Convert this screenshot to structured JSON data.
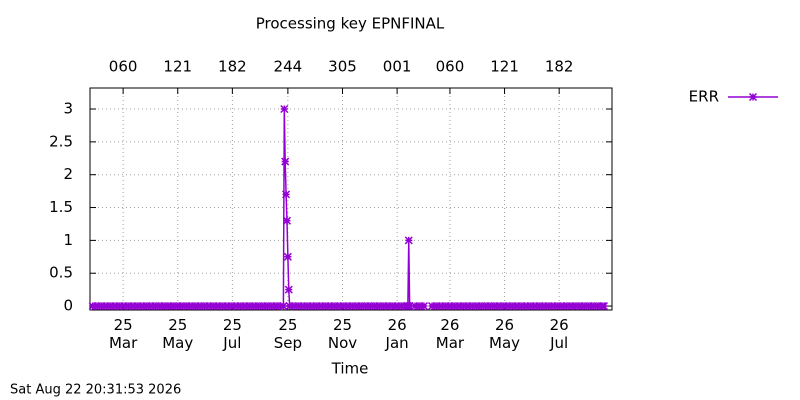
{
  "chart_data": {
    "type": "line",
    "title": "Processing key EPNFINAL",
    "xlabel": "Time",
    "timestamp": "Sat Aug 22 20:31:53 2026",
    "x": [
      25,
      30,
      35,
      40,
      45,
      50,
      55,
      60,
      65,
      70,
      75,
      80,
      85,
      90,
      95,
      100,
      105,
      110,
      115,
      120,
      125,
      130,
      135,
      140,
      145,
      150,
      155,
      160,
      165,
      170,
      175,
      180,
      185,
      190,
      195,
      200,
      205,
      210,
      215,
      220,
      225,
      230,
      235,
      238,
      239,
      240,
      241,
      242,
      243,
      244,
      245,
      250,
      255,
      260,
      265,
      270,
      275,
      280,
      285,
      290,
      295,
      300,
      305,
      310,
      315,
      320,
      325,
      330,
      335,
      340,
      345,
      350,
      355,
      360,
      365,
      370,
      375,
      377,
      378,
      379,
      385,
      390,
      395,
      400,
      404,
      409,
      414,
      419,
      424,
      429,
      434,
      439,
      444,
      449,
      454,
      459,
      464,
      469,
      474,
      479,
      484,
      489,
      494,
      499,
      504,
      509,
      514,
      519,
      524,
      529,
      534,
      539,
      544,
      549,
      554,
      559,
      564,
      569,
      574,
      579,
      584,
      589,
      594,
      596
    ],
    "series": [
      {
        "name": "ERR",
        "color": "#9400d3",
        "values": [
          0,
          0,
          0,
          0,
          0,
          0,
          0,
          0,
          0,
          0,
          0,
          0,
          0,
          0,
          0,
          0,
          0,
          0,
          0,
          0,
          0,
          0,
          0,
          0,
          0,
          0,
          0,
          0,
          0,
          0,
          0,
          0,
          0,
          0,
          0,
          0,
          0,
          0,
          0,
          0,
          0,
          0,
          0,
          0,
          3,
          2.2,
          1.7,
          1.3,
          0.75,
          0.25,
          0,
          0,
          0,
          0,
          0,
          0,
          0,
          0,
          0,
          0,
          0,
          0,
          0,
          0,
          0,
          0,
          0,
          0,
          0,
          0,
          0,
          0,
          0,
          0,
          0,
          0,
          0,
          0,
          1,
          0,
          0,
          0,
          0,
          null,
          0,
          0,
          0,
          0,
          0,
          0,
          0,
          0,
          0,
          0,
          0,
          0,
          0,
          0,
          0,
          0,
          0,
          0,
          0,
          0,
          0,
          0,
          0,
          0,
          0,
          0,
          0,
          0,
          0,
          0,
          0,
          0,
          0,
          0,
          0,
          0,
          0,
          0,
          0,
          0
        ]
      }
    ],
    "xlim": [
      22,
      605
    ],
    "ylim": [
      -0.06,
      3.32
    ],
    "yticks": [
      0,
      0.5,
      1,
      1.5,
      2,
      2.5,
      3
    ],
    "xticks": [
      {
        "value": 59,
        "label": "25\nMar"
      },
      {
        "value": 120,
        "label": "25\nMay"
      },
      {
        "value": 181,
        "label": "25\nJul"
      },
      {
        "value": 243,
        "label": "25\nSep"
      },
      {
        "value": 304,
        "label": "25\nNov"
      },
      {
        "value": 365,
        "label": "26\nJan"
      },
      {
        "value": 424,
        "label": "26\nMar"
      },
      {
        "value": 485,
        "label": "26\nMay"
      },
      {
        "value": 546,
        "label": "26\nJul"
      }
    ],
    "x2ticks": [
      {
        "value": 59,
        "label": "060"
      },
      {
        "value": 120,
        "label": "121"
      },
      {
        "value": 181,
        "label": "182"
      },
      {
        "value": 243,
        "label": "244"
      },
      {
        "value": 304,
        "label": "305"
      },
      {
        "value": 365,
        "label": "001"
      },
      {
        "value": 424,
        "label": "060"
      },
      {
        "value": 485,
        "label": "121"
      },
      {
        "value": 546,
        "label": "182"
      }
    ],
    "grid": true,
    "legend": "outside-top-right"
  }
}
